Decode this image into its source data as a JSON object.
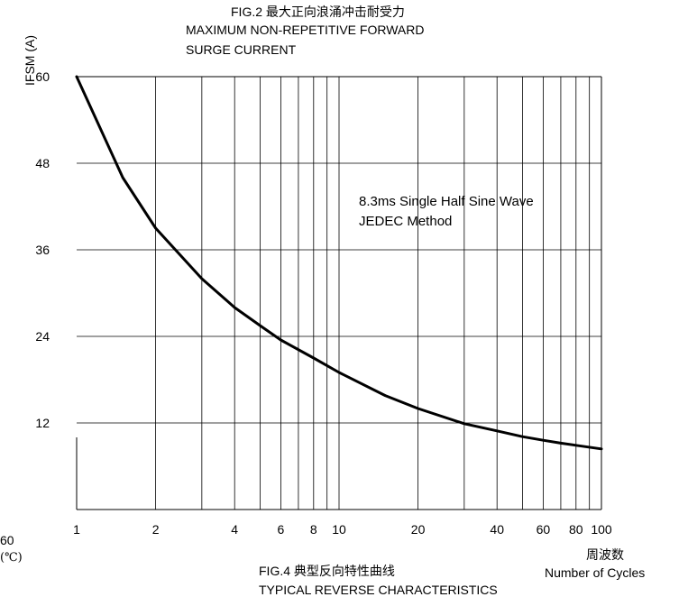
{
  "header": {
    "title_line1": "FIG.2  最大正向浪涌冲击耐受力",
    "title_line2": "MAXIMUM NON-REPETITIVE FORWARD",
    "title_line3": "SURGE CURRENT"
  },
  "footer": {
    "x_unit_cn": "周波数",
    "x_unit_en": "Number of Cycles",
    "fig4_title": "FIG.4 典型反向特性曲线",
    "fig4_subtitle": "TYPICAL REVERSE CHARACTERISTICS",
    "left_fragment_value": "60",
    "left_fragment_unit": "(℃)"
  },
  "chart_data": {
    "type": "line",
    "title": "MAXIMUM NON-REPETITIVE FORWARD SURGE CURRENT",
    "xlabel": "Number of Cycles",
    "ylabel": "IFSM  (A)",
    "x_scale": "log",
    "xlim": [
      1,
      100
    ],
    "ylim": [
      0,
      60
    ],
    "grid": true,
    "x_ticks": [
      1,
      2,
      4,
      6,
      8,
      10,
      20,
      40,
      60,
      80,
      100
    ],
    "x_tick_labels": [
      "1",
      "2",
      "4",
      "6",
      "8",
      "10",
      "20",
      "40",
      "60",
      "80",
      "100"
    ],
    "x_gridlines": [
      1,
      2,
      3,
      4,
      5,
      6,
      7,
      8,
      9,
      10,
      20,
      30,
      40,
      50,
      60,
      70,
      80,
      90,
      100
    ],
    "y_ticks": [
      12,
      24,
      36,
      48,
      60
    ],
    "y_tick_labels": [
      "12",
      "24",
      "36",
      "48",
      "60"
    ],
    "annotations": [
      "8.3ms Single Half Sine Wave",
      "JEDEC Method"
    ],
    "series": [
      {
        "x": [
          1,
          1.5,
          2,
          3,
          4,
          5,
          6,
          8,
          10,
          15,
          20,
          30,
          40,
          50,
          60,
          70,
          80,
          100
        ],
        "y": [
          60,
          46,
          39,
          32,
          28,
          25.5,
          23.5,
          21,
          19,
          15.8,
          14,
          11.9,
          10.9,
          10.1,
          9.6,
          9.2,
          8.9,
          8.4
        ],
        "color": "#000000"
      }
    ]
  }
}
